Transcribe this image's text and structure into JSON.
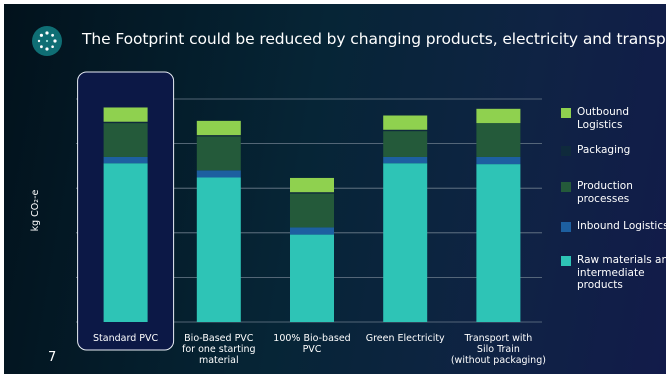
{
  "slide": {
    "title": "The Footprint could be reduced by changing products, electricity and transportation",
    "page_number": "7",
    "logo_icon": "dotted-circle-logo-icon"
  },
  "chart_data": {
    "type": "bar",
    "stacked": true,
    "title": "The Footprint could be reduced by changing products, electricity and transportation",
    "ylabel": "kg CO₂-e",
    "xlabel": "",
    "ylim": [
      0,
      250
    ],
    "grid": true,
    "legend_position": "right",
    "categories": [
      "Standard PVC",
      "Bio-Based PVC for one starting material",
      "100% Bio-based PVC",
      "Green Electricity",
      "Transport with Silo Train (without packaging)"
    ],
    "category_lines": [
      [
        "Standard PVC"
      ],
      [
        "Bio-Based PVC",
        "for one starting",
        "material"
      ],
      [
        "100% Bio-based",
        "PVC"
      ],
      [
        "Green Electricity"
      ],
      [
        "Transport with",
        "Silo Train",
        "(without packaging)"
      ]
    ],
    "highlighted_category": "Standard PVC",
    "series": [
      {
        "name": "Raw materials and intermediate products",
        "color": "#2ec4b6",
        "values": [
          178,
          162,
          98,
          178,
          177
        ]
      },
      {
        "name": "Inbound Logistics",
        "color": "#1d5fa0",
        "values": [
          7,
          8,
          8,
          7,
          8
        ]
      },
      {
        "name": "Production processes",
        "color": "#245a3a",
        "values": [
          38,
          38,
          38,
          29,
          38
        ]
      },
      {
        "name": "Packaging",
        "color": "#0f2a3c",
        "values": [
          1.5,
          1.5,
          1.5,
          1.5,
          0
        ]
      },
      {
        "name": "Outbound Logistics",
        "color": "#8fd14f",
        "values": [
          16,
          16,
          16,
          16,
          16
        ]
      }
    ],
    "legend": [
      {
        "name": "Outbound Logistics",
        "lines": [
          "Outbound",
          "Logistics"
        ],
        "color": "#8fd14f"
      },
      {
        "name": "Packaging",
        "lines": [
          "Packaging"
        ],
        "color": "#0f2a3c"
      },
      {
        "name": "Production processes",
        "lines": [
          "Production",
          "processes"
        ],
        "color": "#245a3a"
      },
      {
        "name": "Inbound Logistics",
        "lines": [
          "Inbound Logistics"
        ],
        "color": "#1d5fa0"
      },
      {
        "name": "Raw materials and intermediate products",
        "lines": [
          "Raw materials and",
          "intermediate",
          "products"
        ],
        "color": "#2ec4b6"
      }
    ]
  }
}
